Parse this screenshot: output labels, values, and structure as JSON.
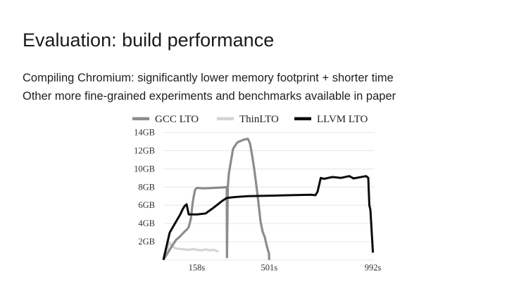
{
  "slide": {
    "title": "Evaluation: build performance",
    "bullets": [
      "Compiling Chromium: significantly lower memory footprint + shorter time",
      "Other more fine-grained experiments and benchmarks available in paper"
    ]
  },
  "chart_data": {
    "type": "line",
    "title": "",
    "xlabel": "",
    "ylabel": "",
    "y_ticks": [
      "14GB",
      "12GB",
      "10GB",
      "8GB",
      "6GB",
      "4GB",
      "2GB"
    ],
    "y_tick_values": [
      14,
      12,
      10,
      8,
      6,
      4,
      2
    ],
    "x_ticks": [
      "158s",
      "501s",
      "992s"
    ],
    "x_tick_values": [
      158,
      501,
      992
    ],
    "xlim": [
      0,
      1000
    ],
    "ylim": [
      0,
      14.5
    ],
    "grid": true,
    "legend_position": "top",
    "series": [
      {
        "name": "GCC LTO",
        "color": "#8c8c8c",
        "x": [
          0,
          40,
          60,
          80,
          100,
          110,
          120,
          130,
          140,
          150,
          158,
          165,
          190,
          230,
          280,
          300,
          301,
          305,
          310,
          330,
          350,
          380,
          400,
          410,
          420,
          430,
          440,
          450,
          460,
          470,
          480,
          490,
          500,
          501
        ],
        "y": [
          0,
          1.5,
          2.2,
          2.6,
          3.1,
          3.3,
          3.6,
          4.5,
          6.5,
          7.7,
          7.9,
          7.9,
          7.85,
          7.9,
          7.95,
          8.0,
          0.3,
          8.0,
          9.5,
          12.2,
          12.9,
          13.2,
          13.3,
          12.8,
          11.5,
          10.0,
          8.2,
          6.3,
          4.2,
          3.1,
          2.5,
          1.5,
          0.7,
          0.0
        ]
      },
      {
        "name": "ThinLTO",
        "color": "#d4d4d4",
        "x": [
          0,
          20,
          30,
          40,
          60,
          80,
          100,
          120,
          140,
          160,
          180,
          200,
          220,
          240,
          260
        ],
        "y": [
          0,
          1.3,
          1.9,
          1.5,
          1.25,
          1.2,
          1.15,
          1.1,
          1.2,
          1.1,
          1.05,
          1.15,
          1.05,
          1.1,
          0.9
        ]
      },
      {
        "name": "LLVM LTO",
        "color": "#0a0a0a",
        "x": [
          0,
          30,
          60,
          80,
          90,
          100,
          110,
          120,
          140,
          160,
          200,
          230,
          280,
          300,
          340,
          400,
          500,
          600,
          700,
          720,
          730,
          745,
          760,
          800,
          840,
          880,
          900,
          960,
          970,
          975,
          980,
          992
        ],
        "y": [
          0,
          3.0,
          4.2,
          5.0,
          5.5,
          5.9,
          6.1,
          5.0,
          5.0,
          5.0,
          5.1,
          5.6,
          6.5,
          6.8,
          6.9,
          7.0,
          7.05,
          7.1,
          7.15,
          7.1,
          7.5,
          9.0,
          8.9,
          9.1,
          9.0,
          9.2,
          8.95,
          9.2,
          9.0,
          6.0,
          5.5,
          0.8
        ]
      }
    ]
  }
}
